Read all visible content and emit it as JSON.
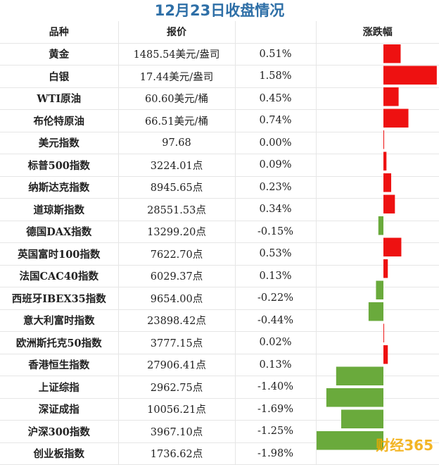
{
  "title": "12月23日收盘情况",
  "columns": [
    "品种",
    "报价",
    "",
    "涨跌幅"
  ],
  "colors": {
    "up": "#ee1111",
    "down": "#6aaa3c",
    "title": "#2e6fa7"
  },
  "watermark": "财经365",
  "chart_data": {
    "type": "bar",
    "categories": [
      "黄金",
      "白银",
      "WTI原油",
      "布伦特原油",
      "美元指数",
      "标普500指数",
      "纳斯达克指数",
      "道琼斯指数",
      "德国DAX指数",
      "英国富时100指数",
      "法国CAC40指数",
      "西班牙IBEX35指数",
      "意大利富时指数",
      "欧洲斯托克50指数",
      "香港恒生指数",
      "上证综指",
      "深证成指",
      "沪深300指数",
      "创业板指数"
    ],
    "prices": [
      "1485.54美元/盎司",
      "17.44美元/盎司",
      "60.60美元/桶",
      "66.51美元/桶",
      "97.68",
      "3224.01点",
      "8945.65点",
      "28551.53点",
      "13299.20点",
      "7622.70点",
      "6029.37点",
      "9654.00点",
      "23898.42点",
      "3777.15点",
      "27906.41点",
      "2962.75点",
      "10056.21点",
      "3967.10点",
      "1736.62点"
    ],
    "labels": [
      "0.51%",
      "1.58%",
      "0.45%",
      "0.74%",
      "0.00%",
      "0.09%",
      "0.23%",
      "0.34%",
      "-0.15%",
      "0.53%",
      "0.13%",
      "-0.22%",
      "-0.44%",
      "0.02%",
      "0.13%",
      "-1.40%",
      "-1.69%",
      "-1.25%",
      "-1.98%"
    ],
    "values": [
      0.51,
      1.58,
      0.45,
      0.74,
      0.0,
      0.09,
      0.23,
      0.34,
      -0.15,
      0.53,
      0.13,
      -0.22,
      -0.44,
      0.02,
      0.13,
      -1.4,
      -1.69,
      -1.25,
      -1.98
    ],
    "unit": "%",
    "grid": true
  }
}
